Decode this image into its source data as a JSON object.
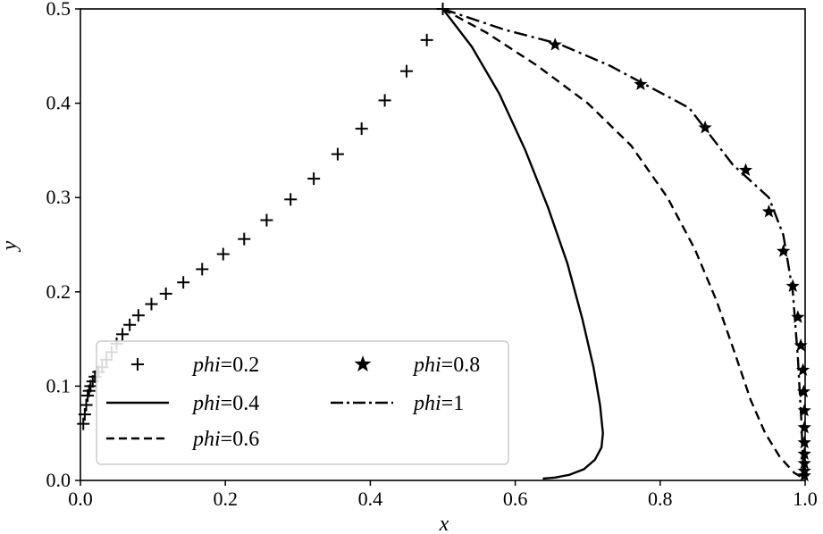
{
  "chart_data": {
    "type": "line",
    "xlabel": "x",
    "ylabel": "y",
    "xlim": [
      0.0,
      1.0
    ],
    "ylim": [
      0.0,
      0.5
    ],
    "x_ticks": [
      "0.0",
      "0.2",
      "0.4",
      "0.6",
      "0.8",
      "1.0"
    ],
    "y_ticks": [
      "0.0",
      "0.1",
      "0.2",
      "0.3",
      "0.4",
      "0.5"
    ],
    "grid": false,
    "legend_position": "lower-left",
    "series": [
      {
        "name_prefix": "phi",
        "name_suffix": "=0.2",
        "style": "plus-markers",
        "points": [
          [
            0.004,
            0.06
          ],
          [
            0.006,
            0.07
          ],
          [
            0.008,
            0.08
          ],
          [
            0.01,
            0.09
          ],
          [
            0.012,
            0.095
          ],
          [
            0.014,
            0.1
          ],
          [
            0.017,
            0.105
          ],
          [
            0.02,
            0.11
          ],
          [
            0.025,
            0.115
          ],
          [
            0.03,
            0.12
          ],
          [
            0.036,
            0.128
          ],
          [
            0.043,
            0.136
          ],
          [
            0.05,
            0.145
          ],
          [
            0.058,
            0.155
          ],
          [
            0.068,
            0.165
          ],
          [
            0.08,
            0.175
          ],
          [
            0.098,
            0.187
          ],
          [
            0.118,
            0.198
          ],
          [
            0.142,
            0.21
          ],
          [
            0.168,
            0.224
          ],
          [
            0.197,
            0.24
          ],
          [
            0.226,
            0.256
          ],
          [
            0.257,
            0.276
          ],
          [
            0.29,
            0.298
          ],
          [
            0.322,
            0.32
          ],
          [
            0.355,
            0.346
          ],
          [
            0.388,
            0.373
          ],
          [
            0.42,
            0.403
          ],
          [
            0.45,
            0.434
          ],
          [
            0.478,
            0.467
          ],
          [
            0.5,
            0.5
          ]
        ]
      },
      {
        "name_prefix": "phi",
        "name_suffix": "=0.4",
        "style": "solid",
        "points": [
          [
            0.5,
            0.5
          ],
          [
            0.54,
            0.46
          ],
          [
            0.578,
            0.41
          ],
          [
            0.614,
            0.35
          ],
          [
            0.645,
            0.29
          ],
          [
            0.672,
            0.23
          ],
          [
            0.693,
            0.17
          ],
          [
            0.708,
            0.12
          ],
          [
            0.717,
            0.08
          ],
          [
            0.721,
            0.05
          ],
          [
            0.719,
            0.035
          ],
          [
            0.71,
            0.022
          ],
          [
            0.695,
            0.012
          ],
          [
            0.675,
            0.006
          ],
          [
            0.655,
            0.003
          ],
          [
            0.638,
            0.002
          ]
        ]
      },
      {
        "name_prefix": "phi",
        "name_suffix": "=0.6",
        "style": "dashed",
        "points": [
          [
            0.5,
            0.5
          ],
          [
            0.56,
            0.475
          ],
          [
            0.63,
            0.44
          ],
          [
            0.7,
            0.4
          ],
          [
            0.76,
            0.355
          ],
          [
            0.81,
            0.3
          ],
          [
            0.848,
            0.245
          ],
          [
            0.878,
            0.19
          ],
          [
            0.903,
            0.135
          ],
          [
            0.925,
            0.085
          ],
          [
            0.945,
            0.05
          ],
          [
            0.965,
            0.025
          ],
          [
            0.985,
            0.008
          ],
          [
            0.998,
            0.002
          ]
        ]
      },
      {
        "name_prefix": "phi",
        "name_suffix": "=0.8",
        "style": "star-markers",
        "points": [
          [
            0.655,
            0.462
          ],
          [
            0.773,
            0.42
          ],
          [
            0.862,
            0.374
          ],
          [
            0.918,
            0.329
          ],
          [
            0.95,
            0.285
          ],
          [
            0.97,
            0.243
          ],
          [
            0.983,
            0.206
          ],
          [
            0.99,
            0.173
          ],
          [
            0.994,
            0.143
          ],
          [
            0.997,
            0.117
          ],
          [
            0.998,
            0.094
          ],
          [
            0.999,
            0.074
          ],
          [
            0.999,
            0.056
          ],
          [
            0.999,
            0.04
          ],
          [
            0.999,
            0.028
          ],
          [
            0.999,
            0.018
          ],
          [
            0.999,
            0.01
          ],
          [
            0.999,
            0.005
          ]
        ]
      },
      {
        "name_prefix": "phi",
        "name_suffix": "=1",
        "style": "dash-dot",
        "points": [
          [
            0.5,
            0.5
          ],
          [
            0.585,
            0.478
          ],
          [
            0.66,
            0.463
          ],
          [
            0.73,
            0.44
          ],
          [
            0.84,
            0.395
          ],
          [
            0.9,
            0.335
          ],
          [
            0.95,
            0.3
          ],
          [
            0.97,
            0.26
          ],
          [
            0.983,
            0.2
          ],
          [
            0.99,
            0.13
          ],
          [
            0.995,
            0.06
          ],
          [
            0.998,
            0.0
          ]
        ]
      }
    ]
  }
}
